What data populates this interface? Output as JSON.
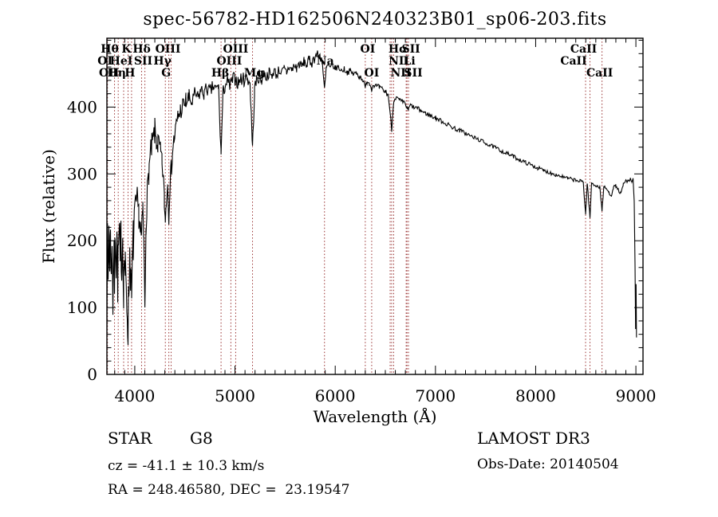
{
  "title": "spec-56782-HD162506N240323B01_sp06-203.fits",
  "footer": {
    "classification": "STAR",
    "subclass": "G8",
    "cz": "cz = -41.1 ± 10.3 km/s",
    "coords": "RA = 248.46580, DEC =  23.19547",
    "survey": "LAMOST DR3",
    "obs_date": "Obs-Date: 20140504"
  },
  "chart_data": {
    "type": "line",
    "title": "spec-56782-HD162506N240323B01_sp06-203.fits",
    "xlabel": "Wavelength (Å)",
    "ylabel": "Flux (relative)",
    "xlim": [
      3722,
      9071
    ],
    "ylim": [
      0,
      503
    ],
    "xticks": [
      4000,
      5000,
      6000,
      7000,
      8000,
      9000
    ],
    "yticks": [
      0,
      100,
      200,
      300,
      400
    ],
    "x_minor_step": 100,
    "y_minor_step": 20,
    "grid": false,
    "legend": "none",
    "line_color": "#000000",
    "spectral_line_color": "#993030",
    "spectral_lines": [
      {
        "label": "Hθ",
        "wavelength": 3798,
        "row": 0,
        "dx": -6
      },
      {
        "label": "K",
        "wavelength": 3933,
        "row": 0,
        "dx": -2
      },
      {
        "label": "Hδ",
        "wavelength": 4101,
        "row": 0,
        "dx": -4
      },
      {
        "label": "OIII",
        "wavelength": 4363,
        "row": 0,
        "dx": -4
      },
      {
        "label": "OIII",
        "wavelength": 5007,
        "row": 0,
        "dx": 0
      },
      {
        "label": "OI",
        "wavelength": 6300,
        "row": 0,
        "dx": 3
      },
      {
        "label": "Hα",
        "wavelength": 6563,
        "row": 0,
        "dx": 8
      },
      {
        "label": "SII",
        "wavelength": 6716,
        "row": 0,
        "dx": 5
      },
      {
        "label": "CaII",
        "wavelength": 8542,
        "row": 0,
        "dx": -8
      },
      {
        "label": "OI",
        "wavelength": 3727,
        "row": 1,
        "dx": -3
      },
      {
        "label": "HeI",
        "wavelength": 3889,
        "row": 1,
        "dx": -3
      },
      {
        "label": "SII",
        "wavelength": 4068,
        "row": 1,
        "dx": 2
      },
      {
        "label": "Hγ",
        "wavelength": 4340,
        "row": 1,
        "dx": -8
      },
      {
        "label": "OIII",
        "wavelength": 4959,
        "row": 1,
        "dx": -2
      },
      {
        "label": "Na",
        "wavelength": 5893,
        "row": 1,
        "dx": 1
      },
      {
        "label": "NII",
        "wavelength": 6548,
        "row": 1,
        "dx": 11
      },
      {
        "label": "Li",
        "wavelength": 6708,
        "row": 1,
        "dx": 4
      },
      {
        "label": "CaII",
        "wavelength": 8498,
        "row": 1,
        "dx": -15
      },
      {
        "label": "OII",
        "wavelength": 3727,
        "row": 2,
        "dx": 2
      },
      {
        "label": "Hη",
        "wavelength": 3835,
        "row": 2,
        "dx": -2
      },
      {
        "label": "H",
        "wavelength": 3968,
        "row": 2,
        "dx": -2
      },
      {
        "label": "G",
        "wavelength": 4305,
        "row": 2,
        "dx": 1
      },
      {
        "label": "Hβ",
        "wavelength": 4861,
        "row": 2,
        "dx": -1
      },
      {
        "label": "Mg",
        "wavelength": 5175,
        "row": 2,
        "dx": 2
      },
      {
        "label": "OI",
        "wavelength": 6364,
        "row": 2,
        "dx": 0
      },
      {
        "label": "NII",
        "wavelength": 6583,
        "row": 2,
        "dx": 9
      },
      {
        "label": "SII",
        "wavelength": 6731,
        "row": 2,
        "dx": 6
      },
      {
        "label": "CaII",
        "wavelength": 8662,
        "row": 2,
        "dx": -3
      }
    ],
    "continuum": [
      [
        3722,
        100
      ],
      [
        3728,
        190
      ],
      [
        3734,
        140
      ],
      [
        3742,
        225
      ],
      [
        3750,
        150
      ],
      [
        3758,
        235
      ],
      [
        3766,
        130
      ],
      [
        3774,
        215
      ],
      [
        3782,
        105
      ],
      [
        3790,
        185
      ],
      [
        3798,
        140
      ],
      [
        3806,
        220
      ],
      [
        3815,
        170
      ],
      [
        3822,
        210
      ],
      [
        3830,
        140
      ],
      [
        3838,
        190
      ],
      [
        3846,
        210
      ],
      [
        3855,
        160
      ],
      [
        3862,
        205
      ],
      [
        3870,
        165
      ],
      [
        3880,
        210
      ],
      [
        3889,
        130
      ],
      [
        3896,
        180
      ],
      [
        3905,
        150
      ],
      [
        3915,
        120
      ],
      [
        3925,
        95
      ],
      [
        3933,
        72
      ],
      [
        3941,
        130
      ],
      [
        3950,
        180
      ],
      [
        3958,
        160
      ],
      [
        3968,
        105
      ],
      [
        3976,
        160
      ],
      [
        3985,
        200
      ],
      [
        3995,
        235
      ],
      [
        4010,
        250
      ],
      [
        4025,
        260
      ],
      [
        4040,
        240
      ],
      [
        4055,
        220
      ],
      [
        4068,
        200
      ],
      [
        4080,
        245
      ],
      [
        4090,
        200
      ],
      [
        4101,
        98
      ],
      [
        4112,
        230
      ],
      [
        4125,
        270
      ],
      [
        4140,
        305
      ],
      [
        4155,
        325
      ],
      [
        4170,
        340
      ],
      [
        4185,
        350
      ],
      [
        4200,
        362
      ],
      [
        4215,
        352
      ],
      [
        4230,
        345
      ],
      [
        4245,
        338
      ],
      [
        4260,
        330
      ],
      [
        4272,
        315
      ],
      [
        4285,
        295
      ],
      [
        4295,
        260
      ],
      [
        4305,
        228
      ],
      [
        4315,
        262
      ],
      [
        4328,
        285
      ],
      [
        4340,
        240
      ],
      [
        4352,
        290
      ],
      [
        4363,
        305
      ],
      [
        4375,
        330
      ],
      [
        4390,
        350
      ],
      [
        4410,
        368
      ],
      [
        4430,
        385
      ],
      [
        4455,
        395
      ],
      [
        4480,
        402
      ],
      [
        4510,
        408
      ],
      [
        4540,
        412
      ],
      [
        4570,
        406
      ],
      [
        4600,
        420
      ],
      [
        4630,
        414
      ],
      [
        4660,
        425
      ],
      [
        4690,
        420
      ],
      [
        4720,
        428
      ],
      [
        4750,
        422
      ],
      [
        4780,
        430
      ],
      [
        4810,
        426
      ],
      [
        4835,
        432
      ],
      [
        4861,
        330
      ],
      [
        4880,
        420
      ],
      [
        4900,
        432
      ],
      [
        4925,
        438
      ],
      [
        4950,
        430
      ],
      [
        4975,
        440
      ],
      [
        5000,
        443
      ],
      [
        5030,
        436
      ],
      [
        5060,
        444
      ],
      [
        5090,
        440
      ],
      [
        5120,
        445
      ],
      [
        5150,
        436
      ],
      [
        5175,
        338
      ],
      [
        5195,
        425
      ],
      [
        5215,
        440
      ],
      [
        5240,
        446
      ],
      [
        5265,
        440
      ],
      [
        5290,
        450
      ],
      [
        5315,
        444
      ],
      [
        5340,
        452
      ],
      [
        5365,
        446
      ],
      [
        5390,
        455
      ],
      [
        5415,
        448
      ],
      [
        5440,
        456
      ],
      [
        5465,
        450
      ],
      [
        5490,
        457
      ],
      [
        5515,
        452
      ],
      [
        5540,
        460
      ],
      [
        5565,
        455
      ],
      [
        5590,
        462
      ],
      [
        5615,
        458
      ],
      [
        5640,
        465
      ],
      [
        5665,
        460
      ],
      [
        5690,
        468
      ],
      [
        5715,
        463
      ],
      [
        5740,
        470
      ],
      [
        5765,
        466
      ],
      [
        5790,
        473
      ],
      [
        5815,
        478
      ],
      [
        5850,
        476
      ],
      [
        5870,
        470
      ],
      [
        5893,
        424
      ],
      [
        5910,
        458
      ],
      [
        5930,
        463
      ],
      [
        5950,
        458
      ],
      [
        5975,
        462
      ],
      [
        6000,
        458
      ],
      [
        6030,
        460
      ],
      [
        6060,
        455
      ],
      [
        6090,
        457
      ],
      [
        6120,
        452
      ],
      [
        6150,
        454
      ],
      [
        6180,
        449
      ],
      [
        6210,
        451
      ],
      [
        6240,
        446
      ],
      [
        6270,
        443
      ],
      [
        6300,
        428
      ],
      [
        6320,
        440
      ],
      [
        6340,
        436
      ],
      [
        6364,
        428
      ],
      [
        6385,
        434
      ],
      [
        6410,
        431
      ],
      [
        6440,
        429
      ],
      [
        6470,
        426
      ],
      [
        6500,
        423
      ],
      [
        6530,
        418
      ],
      [
        6563,
        366
      ],
      [
        6585,
        412
      ],
      [
        6610,
        414
      ],
      [
        6640,
        410
      ],
      [
        6670,
        408
      ],
      [
        6700,
        405
      ],
      [
        6716,
        398
      ],
      [
        6731,
        396
      ],
      [
        6750,
        403
      ],
      [
        6780,
        400
      ],
      [
        6820,
        398
      ],
      [
        6860,
        394
      ],
      [
        6900,
        391
      ],
      [
        6950,
        387
      ],
      [
        7000,
        384
      ],
      [
        7060,
        379
      ],
      [
        7120,
        374
      ],
      [
        7180,
        369
      ],
      [
        7240,
        365
      ],
      [
        7300,
        361
      ],
      [
        7360,
        356
      ],
      [
        7420,
        352
      ],
      [
        7480,
        348
      ],
      [
        7540,
        343
      ],
      [
        7600,
        339
      ],
      [
        7660,
        334
      ],
      [
        7720,
        330
      ],
      [
        7780,
        326
      ],
      [
        7840,
        321
      ],
      [
        7900,
        317
      ],
      [
        7960,
        313
      ],
      [
        8020,
        309
      ],
      [
        8080,
        305
      ],
      [
        8140,
        302
      ],
      [
        8200,
        299
      ],
      [
        8260,
        296
      ],
      [
        8320,
        293
      ],
      [
        8380,
        291
      ],
      [
        8440,
        289
      ],
      [
        8475,
        288
      ],
      [
        8498,
        240
      ],
      [
        8515,
        287
      ],
      [
        8542,
        234
      ],
      [
        8558,
        286
      ],
      [
        8580,
        284
      ],
      [
        8610,
        282
      ],
      [
        8640,
        280
      ],
      [
        8662,
        246
      ],
      [
        8680,
        280
      ],
      [
        8705,
        278
      ],
      [
        8730,
        272
      ],
      [
        8755,
        268
      ],
      [
        8775,
        280
      ],
      [
        8800,
        282
      ],
      [
        8825,
        276
      ],
      [
        8850,
        270
      ],
      [
        8875,
        284
      ],
      [
        8900,
        290
      ],
      [
        8925,
        288
      ],
      [
        8945,
        292
      ],
      [
        8960,
        288
      ],
      [
        8972,
        293
      ],
      [
        8983,
        260
      ],
      [
        8991,
        170
      ],
      [
        8997,
        70
      ],
      [
        9002,
        135
      ],
      [
        9006,
        55
      ]
    ],
    "noise_segments": [
      {
        "from": 3722,
        "to": 4000,
        "amp": 38
      },
      {
        "from": 4000,
        "to": 4250,
        "amp": 22
      },
      {
        "from": 4250,
        "to": 4550,
        "amp": 16
      },
      {
        "from": 4550,
        "to": 5250,
        "amp": 11
      },
      {
        "from": 5250,
        "to": 5900,
        "amp": 8
      },
      {
        "from": 5900,
        "to": 6600,
        "amp": 4.5
      },
      {
        "from": 6600,
        "to": 7300,
        "amp": 3.5
      },
      {
        "from": 7300,
        "to": 8480,
        "amp": 3
      },
      {
        "from": 8480,
        "to": 9006,
        "amp": 2.5
      }
    ],
    "noise_seed": 7
  }
}
